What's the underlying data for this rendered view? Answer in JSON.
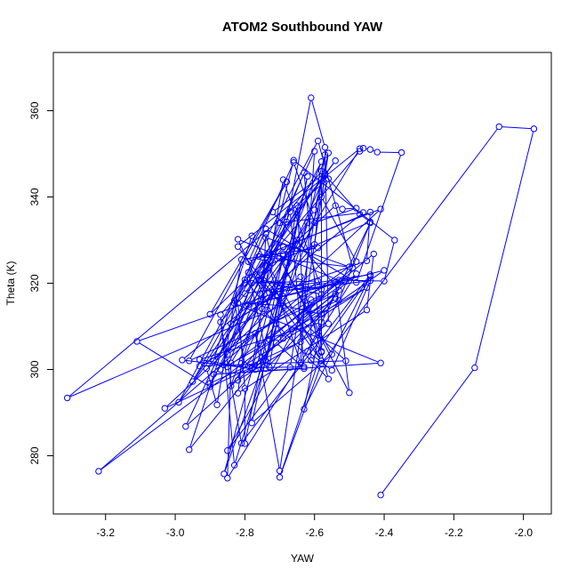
{
  "chart_data": {
    "type": "scatter",
    "title": "ATOM2 Southbound YAW",
    "xlabel": "YAW",
    "ylabel": "Theta (K)",
    "xlim": [
      -3.35,
      -1.92
    ],
    "ylim": [
      266.5,
      373.5
    ],
    "x_ticks": [
      -3.2,
      -3.0,
      -2.8,
      -2.6,
      -2.4,
      -2.2,
      -2.0
    ],
    "y_ticks": [
      280,
      300,
      320,
      340,
      360
    ],
    "x_tick_labels": [
      "-3.2",
      "-3.0",
      "-2.8",
      "-2.6",
      "-2.4",
      "-2.2",
      "-2.0"
    ],
    "y_tick_labels": [
      "280",
      "300",
      "320",
      "340",
      "360"
    ],
    "grid": false,
    "connected": true,
    "series_color": "#0000ff",
    "series": [
      {
        "points": [
          [
            -2.41,
            270.9
          ],
          [
            -2.14,
            300.4
          ],
          [
            -1.97,
            355.8
          ],
          [
            -2.07,
            356.3
          ],
          [
            -2.58,
            301.4
          ],
          [
            -2.7,
            275.0
          ],
          [
            -2.58,
            304.0
          ],
          [
            -2.58,
            344.2
          ],
          [
            -2.6,
            329.0
          ],
          [
            -2.89,
            302.0
          ],
          [
            -2.78,
            331.0
          ],
          [
            -2.58,
            302.0
          ],
          [
            -2.82,
            328.5
          ],
          [
            -2.47,
            351.2
          ],
          [
            -2.84,
            301.5
          ],
          [
            -2.85,
            274.8
          ],
          [
            -2.48,
            322.2
          ],
          [
            -2.97,
            286.8
          ],
          [
            -2.6,
            350.6
          ],
          [
            -2.64,
            301.5
          ],
          [
            -2.73,
            323.5
          ],
          [
            -2.95,
            297.2
          ],
          [
            -2.75,
            326.0
          ],
          [
            -2.54,
            348.4
          ],
          [
            -2.83,
            316.0
          ],
          [
            -2.8,
            301.0
          ],
          [
            -2.45,
            319.0
          ],
          [
            -2.87,
            300.0
          ],
          [
            -2.78,
            320.0
          ],
          [
            -2.59,
            320.5
          ],
          [
            -3.22,
            276.4
          ],
          [
            -2.54,
            317.5
          ],
          [
            -2.96,
            302.0
          ],
          [
            -2.68,
            343.5
          ],
          [
            -2.9,
            312.8
          ],
          [
            -2.72,
            326.8
          ],
          [
            -2.69,
            328.5
          ],
          [
            -2.64,
            328.0
          ],
          [
            -2.57,
            349.8
          ],
          [
            -2.67,
            300.5
          ],
          [
            -2.85,
            281.2
          ],
          [
            -2.61,
            316.2
          ],
          [
            -2.61,
            302.1
          ],
          [
            -2.44,
            321.6
          ],
          [
            -2.63,
            290.8
          ],
          [
            -2.58,
            311.0
          ],
          [
            -2.93,
            302.3
          ],
          [
            -2.77,
            300.0
          ],
          [
            -2.65,
            330.0
          ],
          [
            -2.99,
            292.4
          ],
          [
            -2.59,
            353.0
          ],
          [
            -2.49,
            323.5
          ],
          [
            -2.73,
            307.0
          ],
          [
            -2.43,
            326.8
          ],
          [
            -2.45,
            313.8
          ],
          [
            -2.82,
            294.5
          ],
          [
            -2.81,
            301.4
          ],
          [
            -2.62,
            334.0
          ],
          [
            -2.83,
            277.8
          ],
          [
            -2.87,
            312.7
          ],
          [
            -2.47,
            350.6
          ],
          [
            -2.46,
            351.3
          ],
          [
            -2.44,
            351.0
          ],
          [
            -2.42,
            350.4
          ],
          [
            -2.35,
            350.3
          ],
          [
            -2.48,
            320.2
          ],
          [
            -2.74,
            332.6
          ],
          [
            -2.83,
            315.3
          ],
          [
            -2.41,
            301.5
          ],
          [
            -2.89,
            298.9
          ],
          [
            -2.63,
            300.2
          ],
          [
            -2.71,
            306.2
          ],
          [
            -2.96,
            281.4
          ],
          [
            -2.8,
            320.8
          ],
          [
            -2.74,
            315.0
          ],
          [
            -2.58,
            348.2
          ],
          [
            -2.75,
            322.0
          ],
          [
            -2.58,
            304.2
          ],
          [
            -2.63,
            345.6
          ],
          [
            -2.85,
            303.5
          ],
          [
            -2.48,
            325.0
          ],
          [
            -2.58,
            340.0
          ],
          [
            -2.57,
            345.0
          ],
          [
            -2.68,
            324.8
          ],
          [
            -2.78,
            287.6
          ],
          [
            -2.55,
            303.5
          ],
          [
            -2.7,
            325.8
          ],
          [
            -2.5,
            294.6
          ],
          [
            -2.54,
            320.2
          ],
          [
            -3.31,
            293.4
          ],
          [
            -2.56,
            344.2
          ],
          [
            -2.86,
            275.8
          ],
          [
            -2.69,
            326.8
          ],
          [
            -2.54,
            338.0
          ],
          [
            -2.52,
            337.2
          ],
          [
            -2.48,
            337.4
          ],
          [
            -2.6,
            334.0
          ],
          [
            -2.66,
            348.0
          ],
          [
            -2.79,
            325.0
          ],
          [
            -2.44,
            336.5
          ],
          [
            -2.45,
            325.2
          ],
          [
            -3.11,
            306.5
          ],
          [
            -2.9,
            296.0
          ],
          [
            -2.74,
            324.0
          ],
          [
            -2.44,
            334.2
          ],
          [
            -2.47,
            336.0
          ],
          [
            -2.58,
            346.0
          ],
          [
            -2.7,
            334.0
          ],
          [
            -2.46,
            336.4
          ],
          [
            -2.98,
            302.2
          ],
          [
            -2.78,
            300.2
          ],
          [
            -2.69,
            344.0
          ],
          [
            -2.58,
            318.6
          ],
          [
            -2.76,
            320.8
          ],
          [
            -2.69,
            328.4
          ],
          [
            -2.41,
            337.2
          ],
          [
            -3.03,
            291.0
          ],
          [
            -2.74,
            302.0
          ],
          [
            -2.62,
            344.8
          ],
          [
            -2.71,
            310.6
          ],
          [
            -2.84,
            296.2
          ],
          [
            -2.68,
            334.2
          ],
          [
            -2.61,
            363.0
          ],
          [
            -2.57,
            351.5
          ],
          [
            -2.56,
            310.6
          ],
          [
            -2.82,
            297.5
          ],
          [
            -2.66,
            348.5
          ],
          [
            -2.37,
            330.0
          ],
          [
            -2.4,
            320.5
          ],
          [
            -2.52,
            320.7
          ],
          [
            -2.7,
            318.0
          ],
          [
            -2.84,
            310.6
          ],
          [
            -2.64,
            321.5
          ],
          [
            -2.56,
            297.8
          ],
          [
            -2.75,
            314.0
          ],
          [
            -2.74,
            331.5
          ],
          [
            -2.72,
            324.8
          ],
          [
            -2.87,
            311.0
          ],
          [
            -2.81,
            282.9
          ],
          [
            -2.44,
            322.0
          ],
          [
            -2.8,
            317.6
          ],
          [
            -2.57,
            345.5
          ],
          [
            -2.72,
            336.5
          ],
          [
            -2.53,
            318.4
          ],
          [
            -2.64,
            306.4
          ],
          [
            -2.9,
            296.8
          ],
          [
            -2.6,
            337.0
          ],
          [
            -2.56,
            350.2
          ],
          [
            -2.7,
            276.5
          ],
          [
            -2.77,
            308.4
          ],
          [
            -2.74,
            300.2
          ],
          [
            -2.54,
            316.6
          ],
          [
            -2.69,
            307.2
          ],
          [
            -2.82,
            330.2
          ],
          [
            -2.53,
            320.7
          ],
          [
            -2.78,
            300.4
          ],
          [
            -2.63,
            300.6
          ],
          [
            -2.67,
            336.6
          ],
          [
            -2.85,
            300.6
          ],
          [
            -2.51,
            320.4
          ],
          [
            -2.79,
            315.0
          ],
          [
            -2.4,
            323.0
          ],
          [
            -2.58,
            312.8
          ],
          [
            -2.69,
            314.8
          ],
          [
            -2.82,
            315.4
          ],
          [
            -2.8,
            295.6
          ],
          [
            -2.8,
            282.8
          ],
          [
            -2.69,
            326.4
          ],
          [
            -2.76,
            320.6
          ],
          [
            -2.58,
            317.4
          ],
          [
            -2.93,
            300.8
          ],
          [
            -2.51,
            302.0
          ],
          [
            -2.79,
            322.5
          ],
          [
            -2.73,
            300.6
          ],
          [
            -2.65,
            338.0
          ],
          [
            -2.63,
            312.8
          ],
          [
            -2.53,
            316.0
          ],
          [
            -2.44,
            334.0
          ],
          [
            -2.62,
            304.2
          ],
          [
            -2.55,
            299.8
          ],
          [
            -2.44,
            320.6
          ],
          [
            -2.73,
            317.8
          ],
          [
            -2.91,
            300.2
          ],
          [
            -2.88,
            291.8
          ],
          [
            -2.81,
            325.5
          ],
          [
            -2.59,
            328.2
          ],
          [
            -2.76,
            326.2
          ],
          [
            -2.5,
            323.8
          ],
          [
            -2.74,
            330.6
          ],
          [
            -2.8,
            320.0
          ]
        ]
      }
    ]
  }
}
